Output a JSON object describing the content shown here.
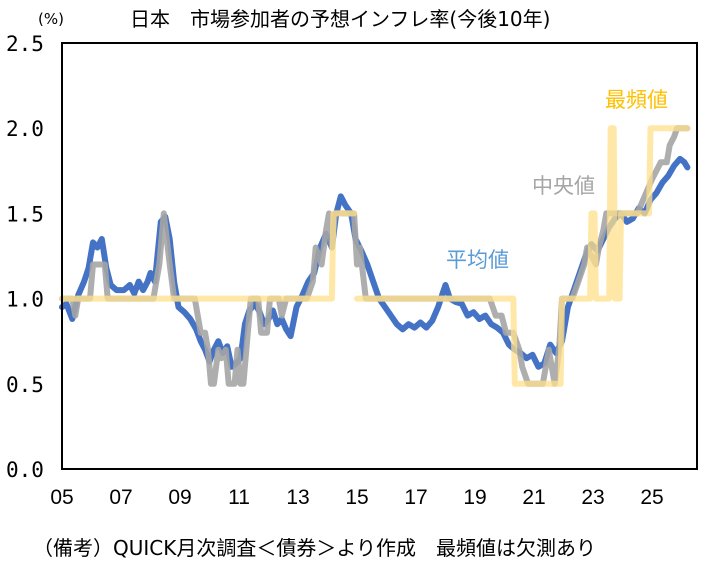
{
  "chart_data": {
    "type": "line",
    "title": "日本　市場参加者の予想インフレ率(今後10年)",
    "ylabel": "(%)",
    "xlabel": "",
    "ylim": [
      0.0,
      2.5
    ],
    "xlim": [
      2005.0,
      2026.5
    ],
    "yticks": [
      "0.0",
      "0.5",
      "1.0",
      "1.5",
      "2.0",
      "2.5"
    ],
    "xticks": [
      {
        "value": 2005,
        "label": "05"
      },
      {
        "value": 2007,
        "label": "07"
      },
      {
        "value": 2009,
        "label": "09"
      },
      {
        "value": 2011,
        "label": "11"
      },
      {
        "value": 2013,
        "label": "13"
      },
      {
        "value": 2015,
        "label": "15"
      },
      {
        "value": 2017,
        "label": "17"
      },
      {
        "value": 2019,
        "label": "19"
      },
      {
        "value": 2021,
        "label": "21"
      },
      {
        "value": 2023,
        "label": "23"
      },
      {
        "value": 2025,
        "label": "25"
      }
    ],
    "grid": false,
    "series": [
      {
        "name": "最頻値",
        "color": "#FFE08A",
        "label_color": "#FFC000",
        "points": [
          [
            2005.0,
            1.0
          ],
          [
            2010.7,
            1.0
          ],
          [
            2010.75,
            1.0
          ],
          [
            2012.3,
            1.0
          ],
          [
            2013.3,
            1.0
          ],
          [
            2014.15,
            1.0
          ],
          [
            2014.2,
            1.5
          ],
          [
            2014.9,
            1.5
          ],
          [
            2014.95,
            null
          ],
          [
            2015.0,
            1.0
          ],
          [
            2020.3,
            1.0
          ],
          [
            2020.35,
            0.5
          ],
          [
            2021.9,
            0.5
          ],
          [
            2021.95,
            1.0
          ],
          [
            2022.9,
            1.0
          ],
          [
            2022.95,
            1.5
          ],
          [
            2023.05,
            1.5
          ],
          [
            2023.1,
            1.0
          ],
          [
            2023.55,
            1.0
          ],
          [
            2023.6,
            2.0
          ],
          [
            2023.7,
            2.0
          ],
          [
            2023.75,
            1.0
          ],
          [
            2023.9,
            1.0
          ],
          [
            2023.95,
            1.5
          ],
          [
            2024.9,
            1.5
          ],
          [
            2024.95,
            2.0
          ],
          [
            2026.2,
            2.0
          ]
        ]
      },
      {
        "name": "中央値",
        "color": "#A5A5A5",
        "label_color": "#A5A5A5",
        "points": [
          [
            2005.0,
            1.0
          ],
          [
            2005.35,
            1.0
          ],
          [
            2005.45,
            0.9
          ],
          [
            2005.55,
            1.0
          ],
          [
            2005.95,
            1.0
          ],
          [
            2006.05,
            1.2
          ],
          [
            2006.45,
            1.2
          ],
          [
            2006.55,
            1.0
          ],
          [
            2008.1,
            1.0
          ],
          [
            2008.3,
            1.2
          ],
          [
            2008.45,
            1.5
          ],
          [
            2008.65,
            1.2
          ],
          [
            2008.8,
            1.0
          ],
          [
            2009.5,
            1.0
          ],
          [
            2009.7,
            0.8
          ],
          [
            2009.85,
            0.8
          ],
          [
            2009.95,
            0.7
          ],
          [
            2010.05,
            0.5
          ],
          [
            2010.15,
            0.5
          ],
          [
            2010.3,
            0.7
          ],
          [
            2010.4,
            0.65
          ],
          [
            2010.55,
            0.7
          ],
          [
            2010.65,
            0.5
          ],
          [
            2010.85,
            0.5
          ],
          [
            2010.95,
            0.7
          ],
          [
            2011.05,
            0.5
          ],
          [
            2011.15,
            0.5
          ],
          [
            2011.3,
            0.8
          ],
          [
            2011.4,
            1.0
          ],
          [
            2011.5,
            1.0
          ],
          [
            2011.65,
            1.0
          ],
          [
            2011.75,
            0.8
          ],
          [
            2011.95,
            0.8
          ],
          [
            2012.05,
            1.0
          ],
          [
            2012.35,
            1.0
          ],
          [
            2012.45,
            0.9
          ],
          [
            2012.6,
            1.0
          ],
          [
            2012.8,
            1.0
          ],
          [
            2013.0,
            1.0
          ],
          [
            2013.3,
            1.0
          ],
          [
            2013.5,
            1.1
          ],
          [
            2013.6,
            1.3
          ],
          [
            2013.8,
            1.2
          ],
          [
            2013.95,
            1.4
          ],
          [
            2014.05,
            1.5
          ],
          [
            2014.15,
            1.3
          ],
          [
            2014.25,
            1.5
          ],
          [
            2014.9,
            1.5
          ],
          [
            2015.0,
            1.2
          ],
          [
            2015.1,
            1.3
          ],
          [
            2015.3,
            1.0
          ],
          [
            2015.4,
            1.0
          ],
          [
            2015.5,
            1.0
          ],
          [
            2019.5,
            1.0
          ],
          [
            2019.7,
            0.9
          ],
          [
            2019.9,
            0.9
          ],
          [
            2020.05,
            0.8
          ],
          [
            2020.3,
            0.8
          ],
          [
            2020.5,
            0.7
          ],
          [
            2020.6,
            0.6
          ],
          [
            2020.8,
            0.5
          ],
          [
            2021.0,
            0.5
          ],
          [
            2021.3,
            0.5
          ],
          [
            2021.5,
            0.7
          ],
          [
            2021.7,
            0.5
          ],
          [
            2021.85,
            0.7
          ],
          [
            2021.95,
            1.0
          ],
          [
            2022.3,
            1.0
          ],
          [
            2022.5,
            1.1
          ],
          [
            2022.7,
            1.2
          ],
          [
            2022.8,
            1.3
          ],
          [
            2022.95,
            1.25
          ],
          [
            2023.1,
            1.2
          ],
          [
            2023.2,
            1.3
          ],
          [
            2023.35,
            1.4
          ],
          [
            2023.45,
            1.5
          ],
          [
            2024.0,
            1.5
          ],
          [
            2024.5,
            1.5
          ],
          [
            2025.0,
            1.7
          ],
          [
            2025.3,
            1.8
          ],
          [
            2025.5,
            1.8
          ],
          [
            2025.6,
            1.9
          ],
          [
            2025.75,
            1.95
          ],
          [
            2025.85,
            2.0
          ],
          [
            2026.2,
            2.0
          ]
        ]
      },
      {
        "name": "平均値",
        "color": "#4472C4",
        "label_color": "#5B9BD5",
        "points": [
          [
            2005.0,
            0.95
          ],
          [
            2005.15,
            0.97
          ],
          [
            2005.35,
            0.88
          ],
          [
            2005.55,
            1.02
          ],
          [
            2005.75,
            1.1
          ],
          [
            2005.9,
            1.18
          ],
          [
            2006.05,
            1.33
          ],
          [
            2006.2,
            1.3
          ],
          [
            2006.35,
            1.35
          ],
          [
            2006.5,
            1.18
          ],
          [
            2006.65,
            1.08
          ],
          [
            2006.85,
            1.05
          ],
          [
            2007.1,
            1.05
          ],
          [
            2007.3,
            1.08
          ],
          [
            2007.45,
            1.03
          ],
          [
            2007.6,
            1.1
          ],
          [
            2007.75,
            1.05
          ],
          [
            2007.9,
            1.1
          ],
          [
            2008.0,
            1.15
          ],
          [
            2008.15,
            1.1
          ],
          [
            2008.35,
            1.45
          ],
          [
            2008.5,
            1.48
          ],
          [
            2008.65,
            1.35
          ],
          [
            2008.8,
            1.1
          ],
          [
            2008.95,
            0.95
          ],
          [
            2009.15,
            0.92
          ],
          [
            2009.35,
            0.88
          ],
          [
            2009.55,
            0.82
          ],
          [
            2009.7,
            0.75
          ],
          [
            2009.85,
            0.7
          ],
          [
            2010.0,
            0.63
          ],
          [
            2010.15,
            0.7
          ],
          [
            2010.3,
            0.75
          ],
          [
            2010.45,
            0.68
          ],
          [
            2010.6,
            0.72
          ],
          [
            2010.75,
            0.6
          ],
          [
            2010.9,
            0.62
          ],
          [
            2011.05,
            0.65
          ],
          [
            2011.2,
            0.85
          ],
          [
            2011.35,
            0.93
          ],
          [
            2011.55,
            0.97
          ],
          [
            2011.7,
            0.92
          ],
          [
            2011.85,
            0.85
          ],
          [
            2012.0,
            0.88
          ],
          [
            2012.15,
            0.93
          ],
          [
            2012.3,
            0.85
          ],
          [
            2012.45,
            0.88
          ],
          [
            2012.6,
            0.82
          ],
          [
            2012.75,
            0.78
          ],
          [
            2012.95,
            0.95
          ],
          [
            2013.15,
            1.02
          ],
          [
            2013.35,
            1.1
          ],
          [
            2013.55,
            1.15
          ],
          [
            2013.75,
            1.3
          ],
          [
            2013.95,
            1.38
          ],
          [
            2014.15,
            1.3
          ],
          [
            2014.3,
            1.5
          ],
          [
            2014.45,
            1.6
          ],
          [
            2014.6,
            1.55
          ],
          [
            2014.8,
            1.5
          ],
          [
            2014.95,
            1.35
          ],
          [
            2015.15,
            1.28
          ],
          [
            2015.35,
            1.2
          ],
          [
            2015.55,
            1.1
          ],
          [
            2015.75,
            1.0
          ],
          [
            2015.95,
            0.95
          ],
          [
            2016.15,
            0.9
          ],
          [
            2016.35,
            0.85
          ],
          [
            2016.55,
            0.82
          ],
          [
            2016.75,
            0.85
          ],
          [
            2016.95,
            0.83
          ],
          [
            2017.15,
            0.86
          ],
          [
            2017.35,
            0.83
          ],
          [
            2017.55,
            0.87
          ],
          [
            2017.75,
            0.95
          ],
          [
            2017.9,
            1.03
          ],
          [
            2018.0,
            1.08
          ],
          [
            2018.15,
            1.0
          ],
          [
            2018.35,
            0.98
          ],
          [
            2018.55,
            0.97
          ],
          [
            2018.75,
            0.9
          ],
          [
            2018.95,
            0.92
          ],
          [
            2019.15,
            0.88
          ],
          [
            2019.35,
            0.9
          ],
          [
            2019.55,
            0.85
          ],
          [
            2019.75,
            0.83
          ],
          [
            2019.95,
            0.8
          ],
          [
            2020.15,
            0.73
          ],
          [
            2020.35,
            0.7
          ],
          [
            2020.55,
            0.68
          ],
          [
            2020.75,
            0.65
          ],
          [
            2020.95,
            0.67
          ],
          [
            2021.15,
            0.6
          ],
          [
            2021.35,
            0.62
          ],
          [
            2021.55,
            0.73
          ],
          [
            2021.75,
            0.68
          ],
          [
            2021.95,
            0.75
          ],
          [
            2022.15,
            0.95
          ],
          [
            2022.35,
            1.05
          ],
          [
            2022.55,
            1.15
          ],
          [
            2022.75,
            1.25
          ],
          [
            2022.95,
            1.32
          ],
          [
            2023.15,
            1.28
          ],
          [
            2023.35,
            1.35
          ],
          [
            2023.55,
            1.42
          ],
          [
            2023.75,
            1.47
          ],
          [
            2023.95,
            1.5
          ],
          [
            2024.15,
            1.45
          ],
          [
            2024.35,
            1.47
          ],
          [
            2024.55,
            1.53
          ],
          [
            2024.75,
            1.5
          ],
          [
            2024.95,
            1.58
          ],
          [
            2025.15,
            1.62
          ],
          [
            2025.35,
            1.68
          ],
          [
            2025.55,
            1.72
          ],
          [
            2025.75,
            1.78
          ],
          [
            2025.95,
            1.82
          ],
          [
            2026.1,
            1.8
          ],
          [
            2026.2,
            1.77
          ]
        ]
      }
    ],
    "annotations": {
      "mode_label": "最頻値",
      "median_label": "中央値",
      "mean_label": "平均値"
    }
  },
  "footnote": "（備考）QUICK月次調査＜債券＞より作成　最頻値は欠測あり"
}
